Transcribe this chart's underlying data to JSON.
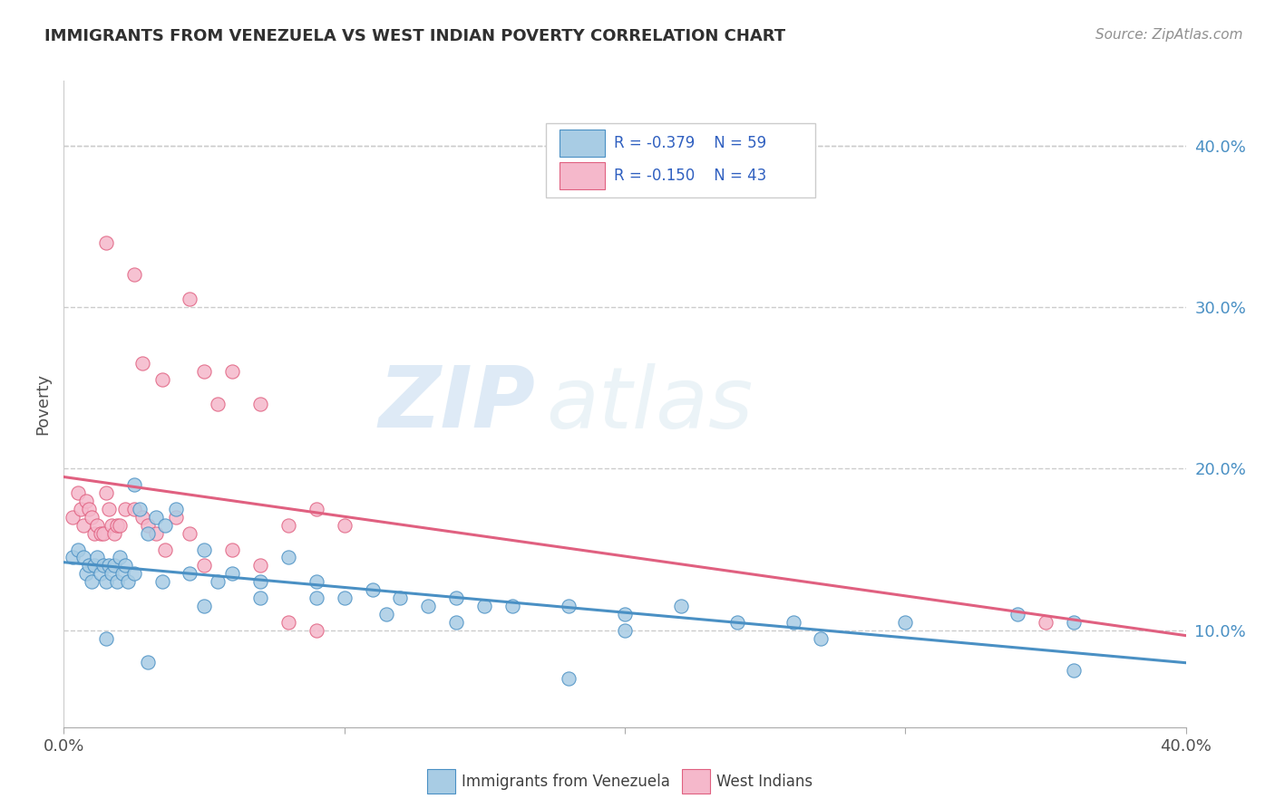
{
  "title": "IMMIGRANTS FROM VENEZUELA VS WEST INDIAN POVERTY CORRELATION CHART",
  "source": "Source: ZipAtlas.com",
  "ylabel": "Poverty",
  "watermark_zip": "ZIP",
  "watermark_atlas": "atlas",
  "xlim": [
    0.0,
    0.4
  ],
  "ylim": [
    0.04,
    0.44
  ],
  "yticks": [
    0.1,
    0.2,
    0.3,
    0.4
  ],
  "ytick_labels": [
    "10.0%",
    "20.0%",
    "30.0%",
    "40.0%"
  ],
  "color_blue": "#a8cce4",
  "color_pink": "#f5b8cb",
  "line_blue": "#4a90c4",
  "line_pink": "#e06080",
  "legend_text_color": "#3060c0",
  "title_color": "#303030",
  "source_color": "#909090",
  "grid_color": "#cccccc",
  "background": "#ffffff",
  "blue_x": [
    0.003,
    0.005,
    0.007,
    0.008,
    0.009,
    0.01,
    0.011,
    0.012,
    0.013,
    0.014,
    0.015,
    0.016,
    0.017,
    0.018,
    0.019,
    0.02,
    0.021,
    0.022,
    0.023,
    0.025,
    0.027,
    0.03,
    0.033,
    0.036,
    0.04,
    0.045,
    0.05,
    0.055,
    0.06,
    0.07,
    0.08,
    0.09,
    0.1,
    0.11,
    0.12,
    0.13,
    0.14,
    0.15,
    0.16,
    0.18,
    0.2,
    0.22,
    0.24,
    0.26,
    0.3,
    0.34,
    0.36,
    0.025,
    0.035,
    0.05,
    0.07,
    0.09,
    0.115,
    0.14,
    0.2,
    0.27,
    0.36,
    0.015,
    0.03,
    0.18
  ],
  "blue_y": [
    0.145,
    0.15,
    0.145,
    0.135,
    0.14,
    0.13,
    0.14,
    0.145,
    0.135,
    0.14,
    0.13,
    0.14,
    0.135,
    0.14,
    0.13,
    0.145,
    0.135,
    0.14,
    0.13,
    0.19,
    0.175,
    0.16,
    0.17,
    0.165,
    0.175,
    0.135,
    0.15,
    0.13,
    0.135,
    0.13,
    0.145,
    0.13,
    0.12,
    0.125,
    0.12,
    0.115,
    0.12,
    0.115,
    0.115,
    0.115,
    0.11,
    0.115,
    0.105,
    0.105,
    0.105,
    0.11,
    0.105,
    0.135,
    0.13,
    0.115,
    0.12,
    0.12,
    0.11,
    0.105,
    0.1,
    0.095,
    0.075,
    0.095,
    0.08,
    0.07
  ],
  "pink_x": [
    0.003,
    0.005,
    0.006,
    0.007,
    0.008,
    0.009,
    0.01,
    0.011,
    0.012,
    0.013,
    0.014,
    0.015,
    0.016,
    0.017,
    0.018,
    0.019,
    0.02,
    0.022,
    0.025,
    0.028,
    0.03,
    0.033,
    0.036,
    0.04,
    0.045,
    0.05,
    0.06,
    0.07,
    0.08,
    0.09,
    0.028,
    0.035,
    0.045,
    0.055,
    0.07,
    0.08,
    0.09,
    0.1,
    0.35,
    0.015,
    0.025,
    0.05,
    0.06
  ],
  "pink_y": [
    0.17,
    0.185,
    0.175,
    0.165,
    0.18,
    0.175,
    0.17,
    0.16,
    0.165,
    0.16,
    0.16,
    0.185,
    0.175,
    0.165,
    0.16,
    0.165,
    0.165,
    0.175,
    0.175,
    0.17,
    0.165,
    0.16,
    0.15,
    0.17,
    0.16,
    0.14,
    0.15,
    0.14,
    0.105,
    0.1,
    0.265,
    0.255,
    0.305,
    0.24,
    0.24,
    0.165,
    0.175,
    0.165,
    0.105,
    0.34,
    0.32,
    0.26,
    0.26
  ]
}
